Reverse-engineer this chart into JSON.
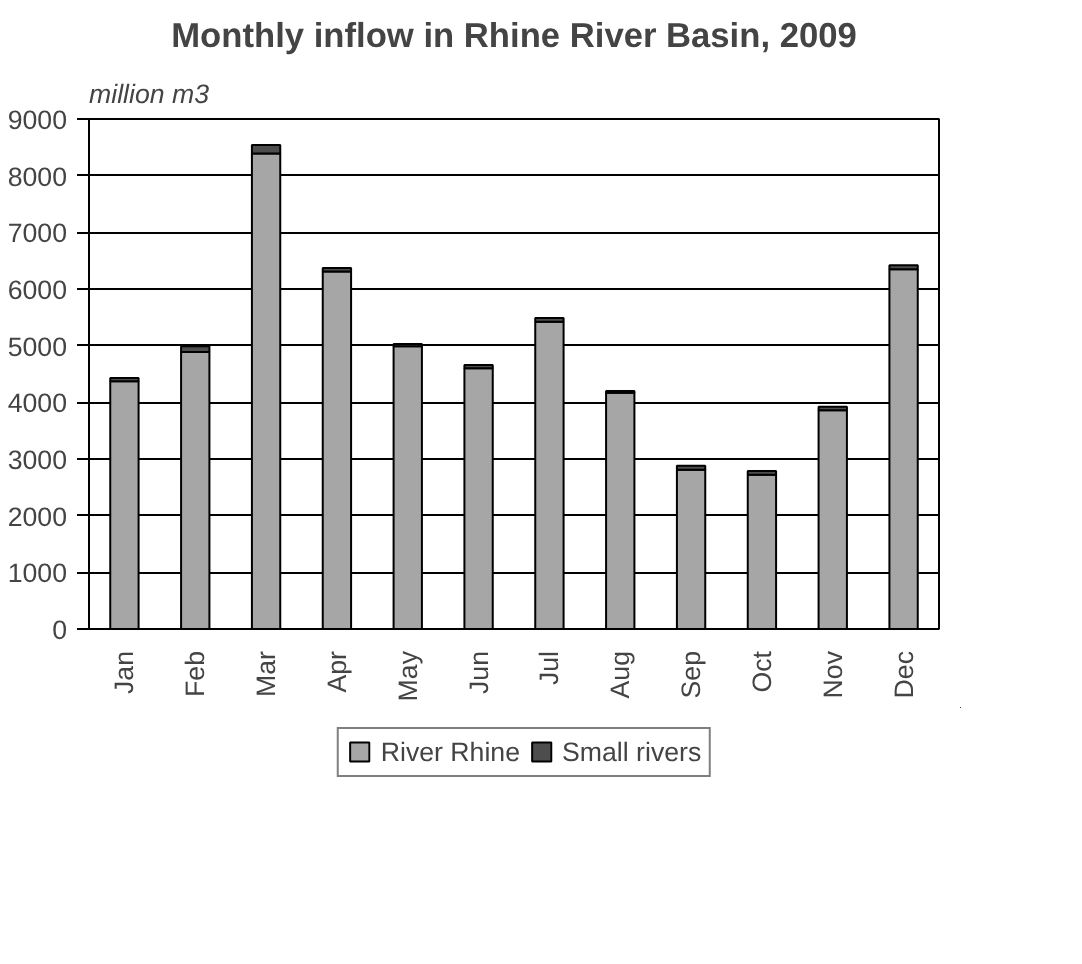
{
  "chart_data": {
    "type": "bar",
    "title": "Monthly inflow in Rhine River Basin, 2009",
    "ylabel": "million m3",
    "categories": [
      "Jan",
      "Feb",
      "Mar",
      "Apr",
      "May",
      "Jun",
      "Jul",
      "Aug",
      "Sep",
      "Oct",
      "Nov",
      "Dec"
    ],
    "series": [
      {
        "name": "River Rhine",
        "color": "#a6a6a6",
        "values": [
          4370,
          4890,
          8390,
          6310,
          4990,
          4600,
          5420,
          4170,
          2810,
          2720,
          3860,
          6350
        ]
      },
      {
        "name": "Small rivers",
        "color": "#4d4d4d",
        "values": [
          60,
          100,
          150,
          60,
          40,
          60,
          70,
          30,
          70,
          70,
          60,
          70
        ]
      }
    ],
    "stacked": true,
    "ylim": [
      0,
      9000
    ],
    "yticks": [
      0,
      1000,
      2000,
      3000,
      4000,
      5000,
      6000,
      7000,
      8000,
      9000
    ],
    "grid": "y",
    "legend": "bottom"
  }
}
